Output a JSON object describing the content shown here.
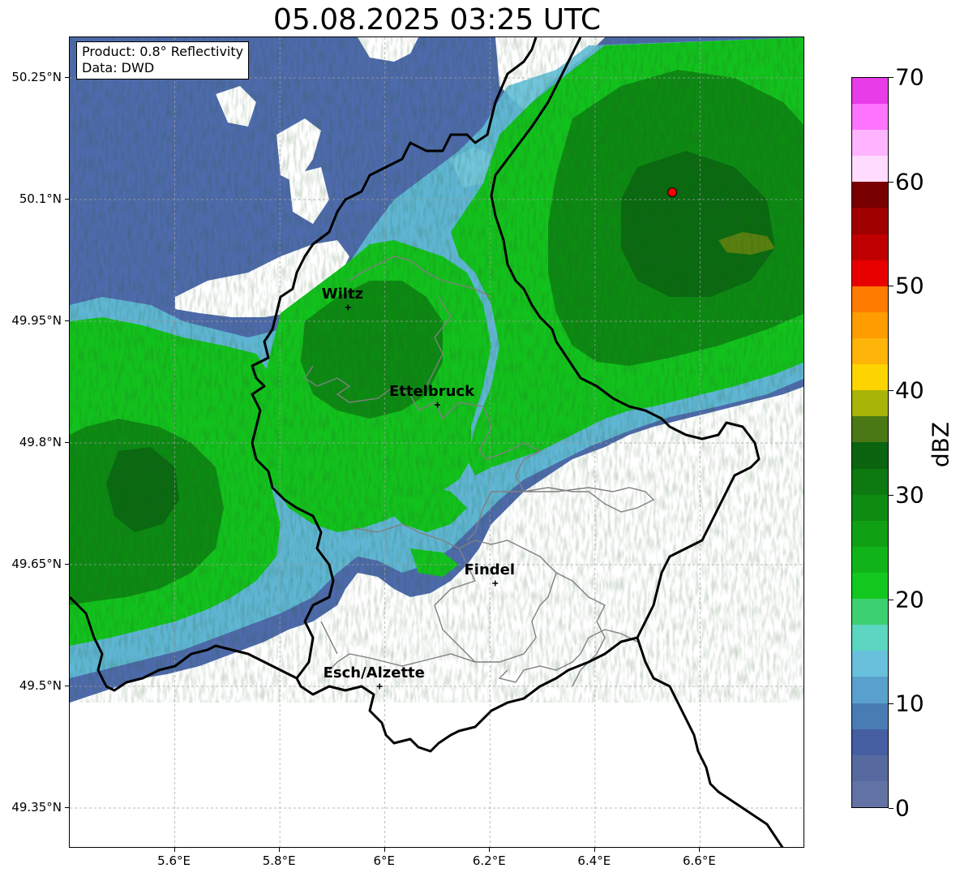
{
  "title": "05.08.2025 03:25 UTC",
  "info": {
    "product": "Product: 0.8° Reflectivity",
    "data": "Data: DWD"
  },
  "map": {
    "lon_range": [
      5.4,
      6.8
    ],
    "lat_range": [
      49.3,
      50.3
    ],
    "lat_ticks": [
      {
        "value": 50.25,
        "label": "50.25°N"
      },
      {
        "value": 50.1,
        "label": "50.1°N"
      },
      {
        "value": 49.95,
        "label": "49.95°N"
      },
      {
        "value": 49.8,
        "label": "49.8°N"
      },
      {
        "value": 49.65,
        "label": "49.65°N"
      },
      {
        "value": 49.5,
        "label": "49.5°N"
      },
      {
        "value": 49.35,
        "label": "49.35°N"
      }
    ],
    "lon_ticks": [
      {
        "value": 5.6,
        "label": "5.6°E"
      },
      {
        "value": 5.8,
        "label": "5.8°E"
      },
      {
        "value": 6.0,
        "label": "6°E"
      },
      {
        "value": 6.2,
        "label": "6.2°E"
      },
      {
        "value": 6.4,
        "label": "6.4°E"
      },
      {
        "value": 6.6,
        "label": "6.6°E"
      }
    ],
    "cities": [
      {
        "name": "Wiltz",
        "lon": 5.93,
        "lat": 49.967
      },
      {
        "name": "Ettelbruck",
        "lon": 6.1,
        "lat": 49.847
      },
      {
        "name": "Findel",
        "lon": 6.21,
        "lat": 49.627
      },
      {
        "name": "Esch/Alzette",
        "lon": 5.99,
        "lat": 49.5
      }
    ],
    "radar_site": {
      "lon": 6.547,
      "lat": 50.109,
      "color": "#ff0000"
    },
    "gridlines": true
  },
  "colorbar": {
    "label": "dBZ",
    "tick_values": [
      0,
      10,
      20,
      30,
      40,
      50,
      60,
      70
    ],
    "tick_labels": [
      "0",
      "10",
      "20",
      "30",
      "40",
      "50",
      "60",
      "70"
    ],
    "colors": [
      "#6272a4",
      "#566aa0",
      "#465ea2",
      "#4a7cb4",
      "#5aa0cc",
      "#68c0dc",
      "#5cd6c0",
      "#3cd070",
      "#12c81e",
      "#10b418",
      "#10a014",
      "#0e8c12",
      "#0c7a10",
      "#0a6410",
      "#4a7814",
      "#a8b408",
      "#fed400",
      "#feb408",
      "#fe9c00",
      "#ff7c00",
      "#e80000",
      "#c00000",
      "#a00000",
      "#780000",
      "#ffdcff",
      "#ffb4ff",
      "#ff74ff",
      "#e83ce8"
    ]
  }
}
